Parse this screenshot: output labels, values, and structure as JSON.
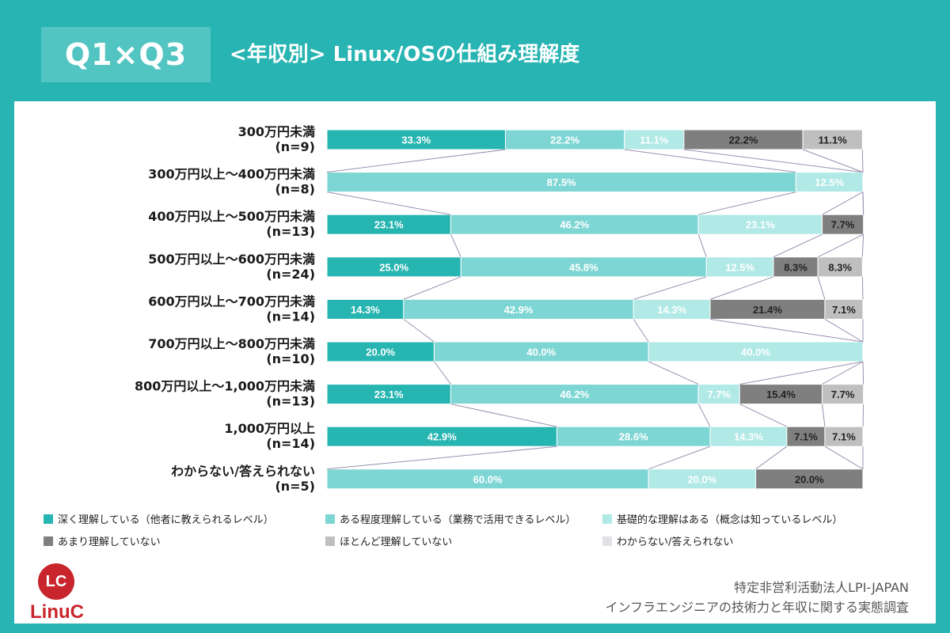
{
  "header": {
    "badge": "Q1×Q3",
    "title": "<年収別> Linux/OSの仕組み理解度"
  },
  "colors": {
    "background": "#27b4b2",
    "panel": "#ffffff",
    "badge": "#52c5c3",
    "categories": [
      "#27b5b1",
      "#7ed6d4",
      "#b0e9e6",
      "#7f7f7f",
      "#bfbfbf",
      "#e1e1e6"
    ]
  },
  "chart_data": {
    "type": "bar",
    "orientation": "horizontal",
    "stacked": "100%",
    "categories": [
      "300万円未満\n(n=9)",
      "300万円以上～400万円未満\n(n=8)",
      "400万円以上～500万円未満\n(n=13)",
      "500万円以上～600万円未満\n(n=24)",
      "600万円以上～700万円未満\n(n=14)",
      "700万円以上～800万円未満\n(n=10)",
      "800万円以上～1,000万円未満\n(n=13)",
      "1,000万円以上\n(n=14)",
      "わからない/答えられない\n(n=5)"
    ],
    "series": [
      {
        "name": "深く理解している（他者に教えられるレベル）",
        "values": [
          33.3,
          0,
          23.1,
          25.0,
          14.3,
          20.0,
          23.1,
          42.9,
          0
        ]
      },
      {
        "name": "ある程度理解している（業務で活用できるレベル）",
        "values": [
          22.2,
          87.5,
          46.2,
          45.8,
          42.9,
          40.0,
          46.2,
          28.6,
          60.0
        ]
      },
      {
        "name": "基礎的な理解はある（概念は知っているレベル）",
        "values": [
          11.1,
          12.5,
          23.1,
          12.5,
          14.3,
          40.0,
          7.7,
          14.3,
          20.0
        ]
      },
      {
        "name": "あまり理解していない",
        "values": [
          22.2,
          0,
          7.7,
          8.3,
          21.4,
          0,
          15.4,
          7.1,
          20.0
        ]
      },
      {
        "name": "ほとんど理解していない",
        "values": [
          11.1,
          0,
          0,
          8.3,
          7.1,
          0,
          7.7,
          7.1,
          0
        ]
      },
      {
        "name": "わからない/答えられない",
        "values": [
          0,
          0,
          0,
          0,
          0,
          0,
          0,
          0,
          0
        ]
      }
    ],
    "value_suffix": "%",
    "xlim": [
      0,
      100
    ]
  },
  "legend": [
    "深く理解している（他者に教えられるレベル）",
    "ある程度理解している（業務で活用できるレベル）",
    "基礎的な理解はある（概念は知っているレベル）",
    "あまり理解していない",
    "ほとんど理解していない",
    "わからない/答えられない"
  ],
  "footer": {
    "logo_badge": "LC",
    "logo_text": "LinuC",
    "org": "特定非営利活動法人LPI-JAPAN",
    "survey": "インフラエンジニアの技術力と年収に関する実態調査"
  }
}
